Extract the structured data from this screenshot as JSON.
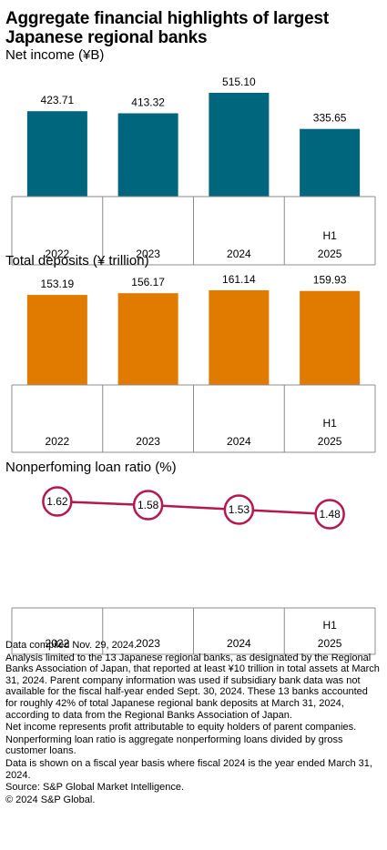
{
  "title": "Aggregate financial highlights of largest Japanese regional banks",
  "chart_data": [
    {
      "type": "bar",
      "title": "Net income (¥B)",
      "categories": [
        "2022",
        "2023",
        "2024",
        "2025"
      ],
      "category_prefix": [
        "",
        "",
        "",
        "H1"
      ],
      "values": [
        423.71,
        413.32,
        515.1,
        335.65
      ],
      "value_labels": [
        "423.71",
        "413.32",
        "515.10",
        "335.65"
      ],
      "ylim": [
        0,
        560
      ],
      "grid": false,
      "color": "#00667e"
    },
    {
      "type": "bar",
      "title": "Total deposits (¥ trillion)",
      "categories": [
        "2022",
        "2023",
        "2024",
        "2025"
      ],
      "category_prefix": [
        "",
        "",
        "",
        "H1"
      ],
      "values": [
        153.19,
        156.17,
        161.14,
        159.93
      ],
      "value_labels": [
        "153.19",
        "156.17",
        "161.14",
        "159.93"
      ],
      "ylim": [
        0,
        175
      ],
      "grid": false,
      "color": "#e07b00"
    },
    {
      "type": "line",
      "title": "Nonperfoming loan ratio (%)",
      "categories": [
        "2022",
        "2023",
        "2024",
        "2025"
      ],
      "category_prefix": [
        "",
        "",
        "",
        "H1"
      ],
      "values": [
        1.62,
        1.58,
        1.53,
        1.48
      ],
      "value_labels": [
        "1.62",
        "1.58",
        "1.53",
        "1.48"
      ],
      "ylim": [
        0,
        2
      ],
      "grid": false,
      "color": "#b5174f"
    }
  ],
  "notes": [
    "Data compiled Nov. 29, 2024.",
    "Analysis limited to the 13 Japanese regional banks, as designated by the Regional Banks Association of Japan, that reported at least ¥10 trillion in total assets at March 31, 2024. Parent company information was used if subsidiary bank data was not available for the fiscal half-year ended Sept. 30, 2024. These 13 banks accounted for roughly 42% of total Japanese regional bank deposits at March 31, 2024, according to data from the Regional Banks Association of Japan.",
    "Net income represents profit attributable to equity holders of parent companies.",
    "Nonperforming loan ratio is aggregate nonperforming loans divided by gross customer loans.",
    "Data is shown on a fiscal year basis where fiscal 2024 is the year ended March 31, 2024.",
    "Source: S&P Global Market Intelligence.",
    "© 2024 S&P Global."
  ]
}
